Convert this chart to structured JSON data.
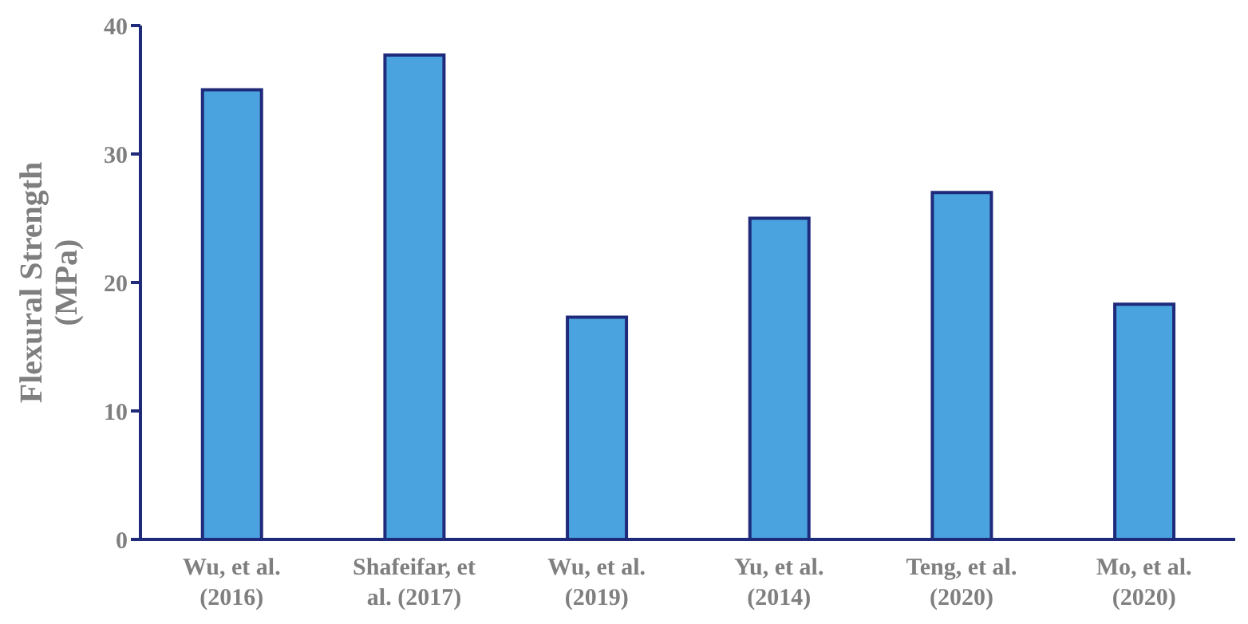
{
  "chart_data": {
    "type": "bar",
    "ylabel": "Flexural Strength (MPa)",
    "categories": [
      "Wu, et al. (2016)",
      "Shafeifar, et al. (2017)",
      "Wu, et al. (2019)",
      "Yu, et al. (2014)",
      "Teng, et al. (2020)",
      "Mo, et al. (2020)"
    ],
    "values": [
      35,
      37.7,
      17.3,
      25,
      27,
      18.3
    ],
    "color": "#4aa3df",
    "ylim": [
      0,
      40
    ],
    "yticks": [
      0,
      10,
      20,
      30,
      40
    ],
    "grid": false,
    "legend": false
  }
}
